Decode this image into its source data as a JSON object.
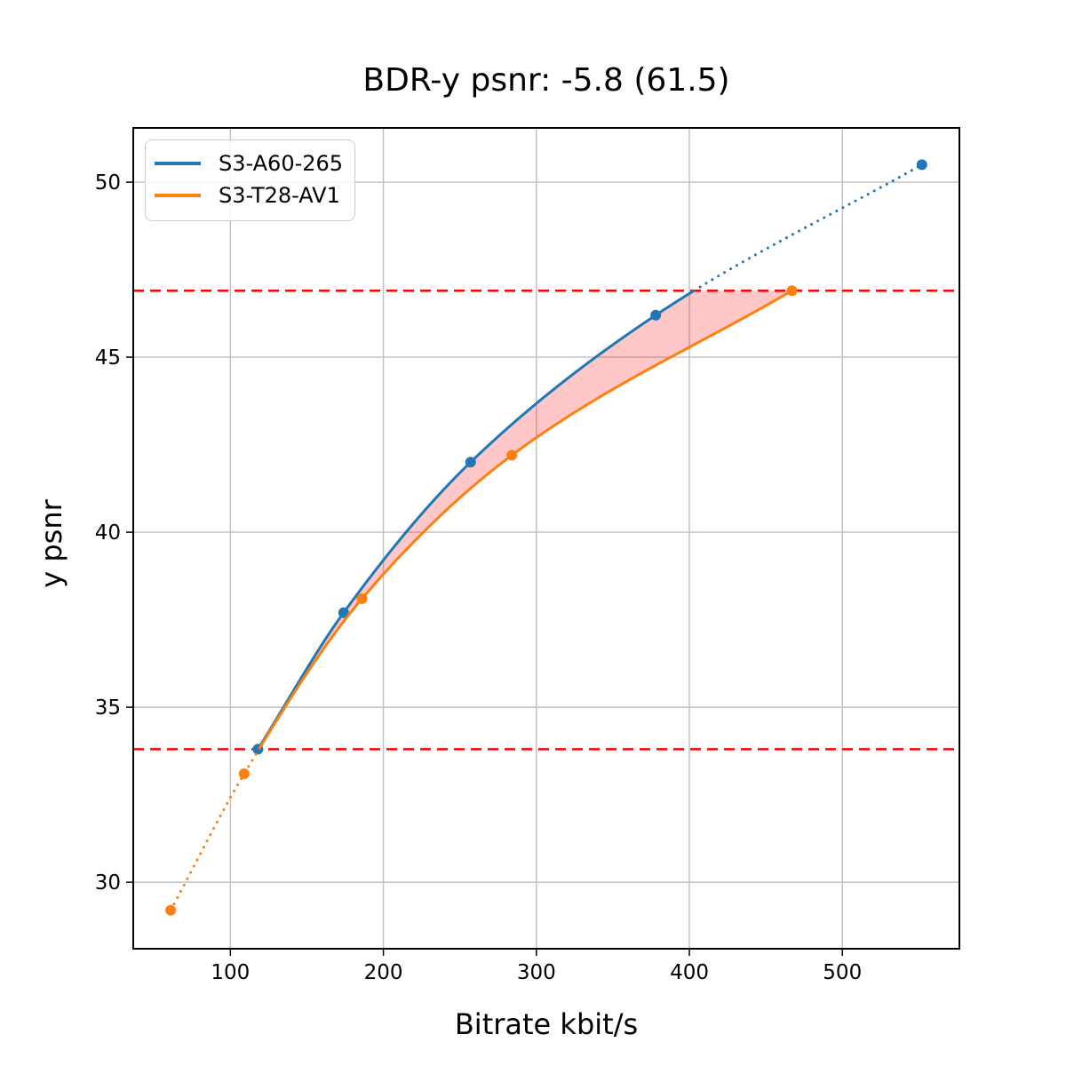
{
  "title": "BDR-y psnr: -5.8 (61.5)",
  "xlabel": "Bitrate kbit/s",
  "ylabel": "y psnr",
  "legend": {
    "position": "upper left",
    "items": [
      {
        "label": "S3-A60-265",
        "color": "#1f77b4"
      },
      {
        "label": "S3-T28-AV1",
        "color": "#ff7f0e"
      }
    ]
  },
  "chart_data": {
    "type": "line",
    "title": "BDR-y psnr: -5.8 (61.5)",
    "bdr_value": -5.8,
    "bdr_value_secondary": 61.5,
    "xlabel": "Bitrate kbit/s",
    "ylabel": "y psnr",
    "xlim": [
      36.5,
      576.5
    ],
    "ylim": [
      28.1,
      51.55
    ],
    "x_ticks": [
      100,
      200,
      300,
      400,
      500
    ],
    "y_ticks": [
      30,
      35,
      40,
      45,
      50
    ],
    "grid": true,
    "grid_color": "#c0c0c0",
    "frame_color": "#000000",
    "legend_position": "upper left",
    "series": [
      {
        "name": "S3-A60-265",
        "color": "#1f77b4",
        "marker": "circle",
        "points": [
          [
            118,
            33.8
          ],
          [
            174,
            37.7
          ],
          [
            257,
            42.0
          ],
          [
            378,
            46.2
          ],
          [
            552,
            50.5
          ]
        ]
      },
      {
        "name": "S3-T28-AV1",
        "color": "#ff7f0e",
        "marker": "circle",
        "points": [
          [
            61,
            29.2
          ],
          [
            109,
            33.1
          ],
          [
            186,
            38.1
          ],
          [
            284,
            42.2
          ],
          [
            467,
            46.9
          ]
        ]
      }
    ],
    "overlap": {
      "low": 33.8,
      "high": 46.9,
      "line_color": "#ff0000",
      "line_style": "dashed",
      "shade_color": "rgba(255,0,0,0.22)"
    }
  }
}
